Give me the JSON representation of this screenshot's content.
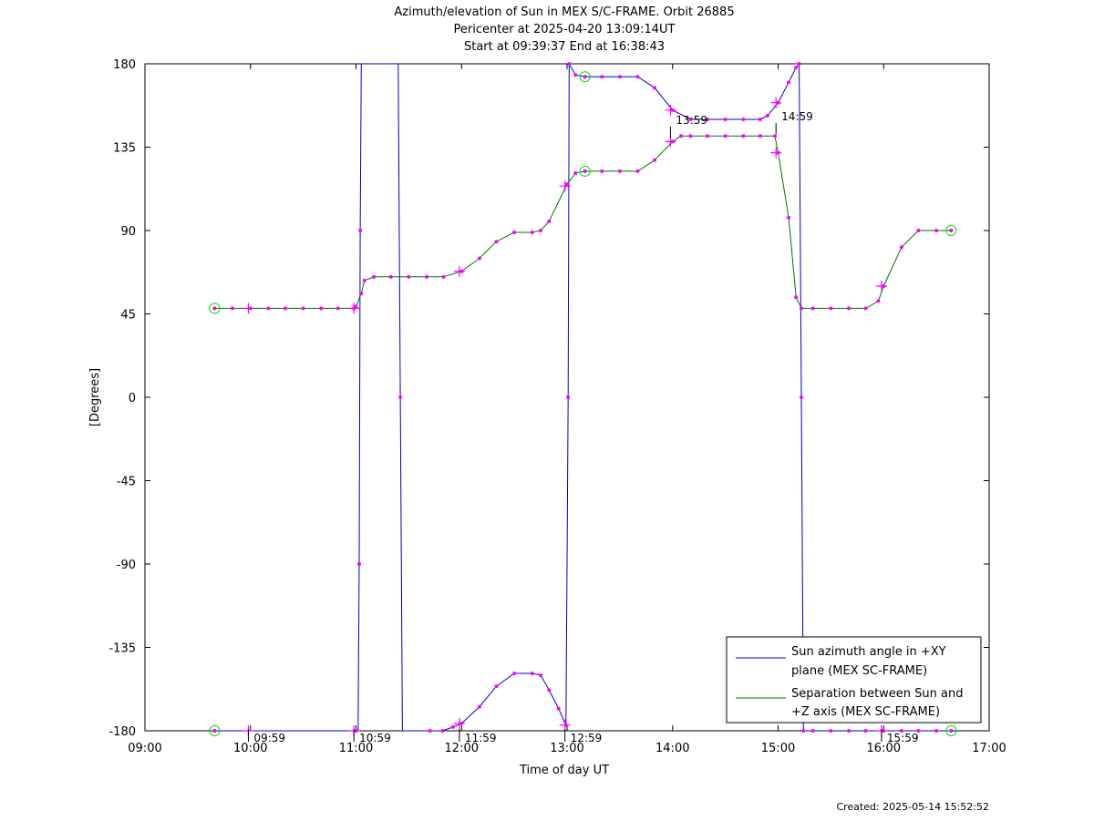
{
  "header": {
    "title": "Azimuth/elevation of Sun in MEX S/C-FRAME.  Orbit 26885",
    "subtitle1": "Pericenter at 2025-04-20 13:09:14UT",
    "subtitle2": "Start at 09:39:37 End at 16:38:43"
  },
  "footer": {
    "created": "Created: 2025-05-14 15:52:52"
  },
  "colors": {
    "azimuth": "#0000cc",
    "separation": "#007700",
    "marker": "#ff00ff",
    "endpoint": "#00dd00"
  },
  "chart_data": {
    "type": "line",
    "xlabel": "Time of day UT",
    "ylabel": "[Degrees]",
    "xlim": [
      9.0,
      17.0
    ],
    "ylim": [
      -180,
      180
    ],
    "x_ticks": [
      {
        "v": 9,
        "label": "09:00"
      },
      {
        "v": 10,
        "label": "10:00"
      },
      {
        "v": 11,
        "label": "11:00"
      },
      {
        "v": 12,
        "label": "12:00"
      },
      {
        "v": 13,
        "label": "13:00"
      },
      {
        "v": 14,
        "label": "14:00"
      },
      {
        "v": 15,
        "label": "15:00"
      },
      {
        "v": 16,
        "label": "16:00"
      },
      {
        "v": 17,
        "label": "17:00"
      }
    ],
    "y_ticks": [
      {
        "v": 180,
        "label": "180"
      },
      {
        "v": 135,
        "label": "135"
      },
      {
        "v": 90,
        "label": "90"
      },
      {
        "v": 45,
        "label": "45"
      },
      {
        "v": 0,
        "label": "0"
      },
      {
        "v": -45,
        "label": "-45"
      },
      {
        "v": -90,
        "label": "-90"
      },
      {
        "v": -135,
        "label": "-135"
      },
      {
        "v": -180,
        "label": "-180"
      }
    ],
    "legend_position": "bottom-right",
    "series": [
      {
        "name": "Sun azimuth angle in +XY plane (MEX SC-FRAME)",
        "legend_lines": [
          "Sun azimuth angle in +XY",
          "plane (MEX SC-FRAME)"
        ],
        "color": "#0000cc",
        "points": [
          [
            9.66,
            -180
          ],
          [
            11.0,
            -180
          ],
          [
            11.02,
            -180
          ],
          [
            11.03,
            -90
          ],
          [
            11.04,
            90
          ],
          [
            11.05,
            180
          ],
          [
            11.07,
            180
          ],
          [
            11.12,
            180
          ],
          [
            11.25,
            180
          ],
          [
            11.35,
            180
          ],
          [
            11.4,
            180
          ],
          [
            11.42,
            0
          ],
          [
            11.44,
            -180
          ],
          [
            11.7,
            -180
          ],
          [
            11.82,
            -180
          ],
          [
            11.92,
            -178
          ],
          [
            12.0,
            -176
          ],
          [
            12.17,
            -167
          ],
          [
            12.33,
            -156
          ],
          [
            12.5,
            -149
          ],
          [
            12.67,
            -149
          ],
          [
            12.75,
            -150
          ],
          [
            12.83,
            -158
          ],
          [
            12.92,
            -168
          ],
          [
            12.99,
            -177
          ],
          [
            13.01,
            0
          ],
          [
            13.02,
            180
          ],
          [
            13.08,
            174
          ],
          [
            13.17,
            173
          ],
          [
            13.33,
            173
          ],
          [
            13.5,
            173
          ],
          [
            13.67,
            173
          ],
          [
            13.83,
            167
          ],
          [
            14.0,
            155
          ],
          [
            14.17,
            150
          ],
          [
            14.33,
            150
          ],
          [
            14.5,
            150
          ],
          [
            14.67,
            150
          ],
          [
            14.83,
            150
          ],
          [
            14.9,
            152
          ],
          [
            15.0,
            159
          ],
          [
            15.1,
            170
          ],
          [
            15.17,
            178
          ],
          [
            15.2,
            180
          ],
          [
            15.22,
            0
          ],
          [
            15.24,
            -180
          ],
          [
            15.33,
            -180
          ],
          [
            15.5,
            -180
          ],
          [
            15.67,
            -180
          ],
          [
            15.83,
            -180
          ],
          [
            16.0,
            -180
          ],
          [
            16.17,
            -180
          ],
          [
            16.33,
            -180
          ],
          [
            16.5,
            -180
          ],
          [
            16.64,
            -180
          ]
        ]
      },
      {
        "name": "Separation between Sun and +Z axis (MEX SC-FRAME)",
        "legend_lines": [
          "Separation between Sun and",
          "+Z axis (MEX SC-FRAME)"
        ],
        "color": "#007700",
        "points": [
          [
            9.66,
            48
          ],
          [
            9.83,
            48
          ],
          [
            10.0,
            48
          ],
          [
            10.17,
            48
          ],
          [
            10.33,
            48
          ],
          [
            10.5,
            48
          ],
          [
            10.67,
            48
          ],
          [
            10.83,
            48
          ],
          [
            10.98,
            48
          ],
          [
            11.0,
            49
          ],
          [
            11.05,
            56
          ],
          [
            11.08,
            63
          ],
          [
            11.17,
            65
          ],
          [
            11.33,
            65
          ],
          [
            11.5,
            65
          ],
          [
            11.67,
            65
          ],
          [
            11.83,
            65
          ],
          [
            12.0,
            68
          ],
          [
            12.17,
            75
          ],
          [
            12.33,
            84
          ],
          [
            12.5,
            89
          ],
          [
            12.67,
            89
          ],
          [
            12.75,
            90
          ],
          [
            12.83,
            95
          ],
          [
            13.0,
            115
          ],
          [
            13.08,
            121
          ],
          [
            13.17,
            122
          ],
          [
            13.33,
            122
          ],
          [
            13.5,
            122
          ],
          [
            13.67,
            122
          ],
          [
            13.83,
            128
          ],
          [
            14.0,
            138
          ],
          [
            14.08,
            141
          ],
          [
            14.17,
            141
          ],
          [
            14.33,
            141
          ],
          [
            14.5,
            141
          ],
          [
            14.67,
            141
          ],
          [
            14.83,
            141
          ],
          [
            14.97,
            141
          ],
          [
            15.0,
            132
          ],
          [
            15.1,
            97
          ],
          [
            15.17,
            54
          ],
          [
            15.22,
            48
          ],
          [
            15.33,
            48
          ],
          [
            15.5,
            48
          ],
          [
            15.67,
            48
          ],
          [
            15.83,
            48
          ],
          [
            15.95,
            52
          ],
          [
            16.0,
            60
          ],
          [
            16.17,
            81
          ],
          [
            16.33,
            90
          ],
          [
            16.5,
            90
          ],
          [
            16.64,
            90
          ]
        ]
      }
    ],
    "annotations": [
      {
        "x": 9.98,
        "label": "09:59"
      },
      {
        "x": 10.98,
        "label": "10:59"
      },
      {
        "x": 11.98,
        "label": "11:59"
      },
      {
        "x": 12.98,
        "label": "12:59"
      },
      {
        "x": 13.98,
        "label": "13:59"
      },
      {
        "x": 14.98,
        "label": "14:59"
      },
      {
        "x": 15.98,
        "label": "15:59"
      }
    ],
    "annotation_anchor_y": [
      -180,
      -180,
      -180,
      -180,
      150,
      152,
      -180
    ],
    "hour_crosses": [
      [
        9.98,
        -180
      ],
      [
        10.98,
        -180
      ],
      [
        11.98,
        -176
      ],
      [
        12.98,
        -177
      ],
      [
        13.98,
        155
      ],
      [
        14.98,
        159
      ],
      [
        15.98,
        -180
      ],
      [
        9.98,
        48
      ],
      [
        10.98,
        48
      ],
      [
        11.98,
        68
      ],
      [
        12.98,
        114
      ],
      [
        13.98,
        138
      ],
      [
        14.98,
        132
      ],
      [
        15.98,
        60
      ]
    ],
    "endpoints": [
      [
        9.66,
        -180
      ],
      [
        9.66,
        48
      ],
      [
        13.17,
        173
      ],
      [
        13.17,
        122
      ],
      [
        16.64,
        -180
      ],
      [
        16.64,
        90
      ]
    ]
  }
}
